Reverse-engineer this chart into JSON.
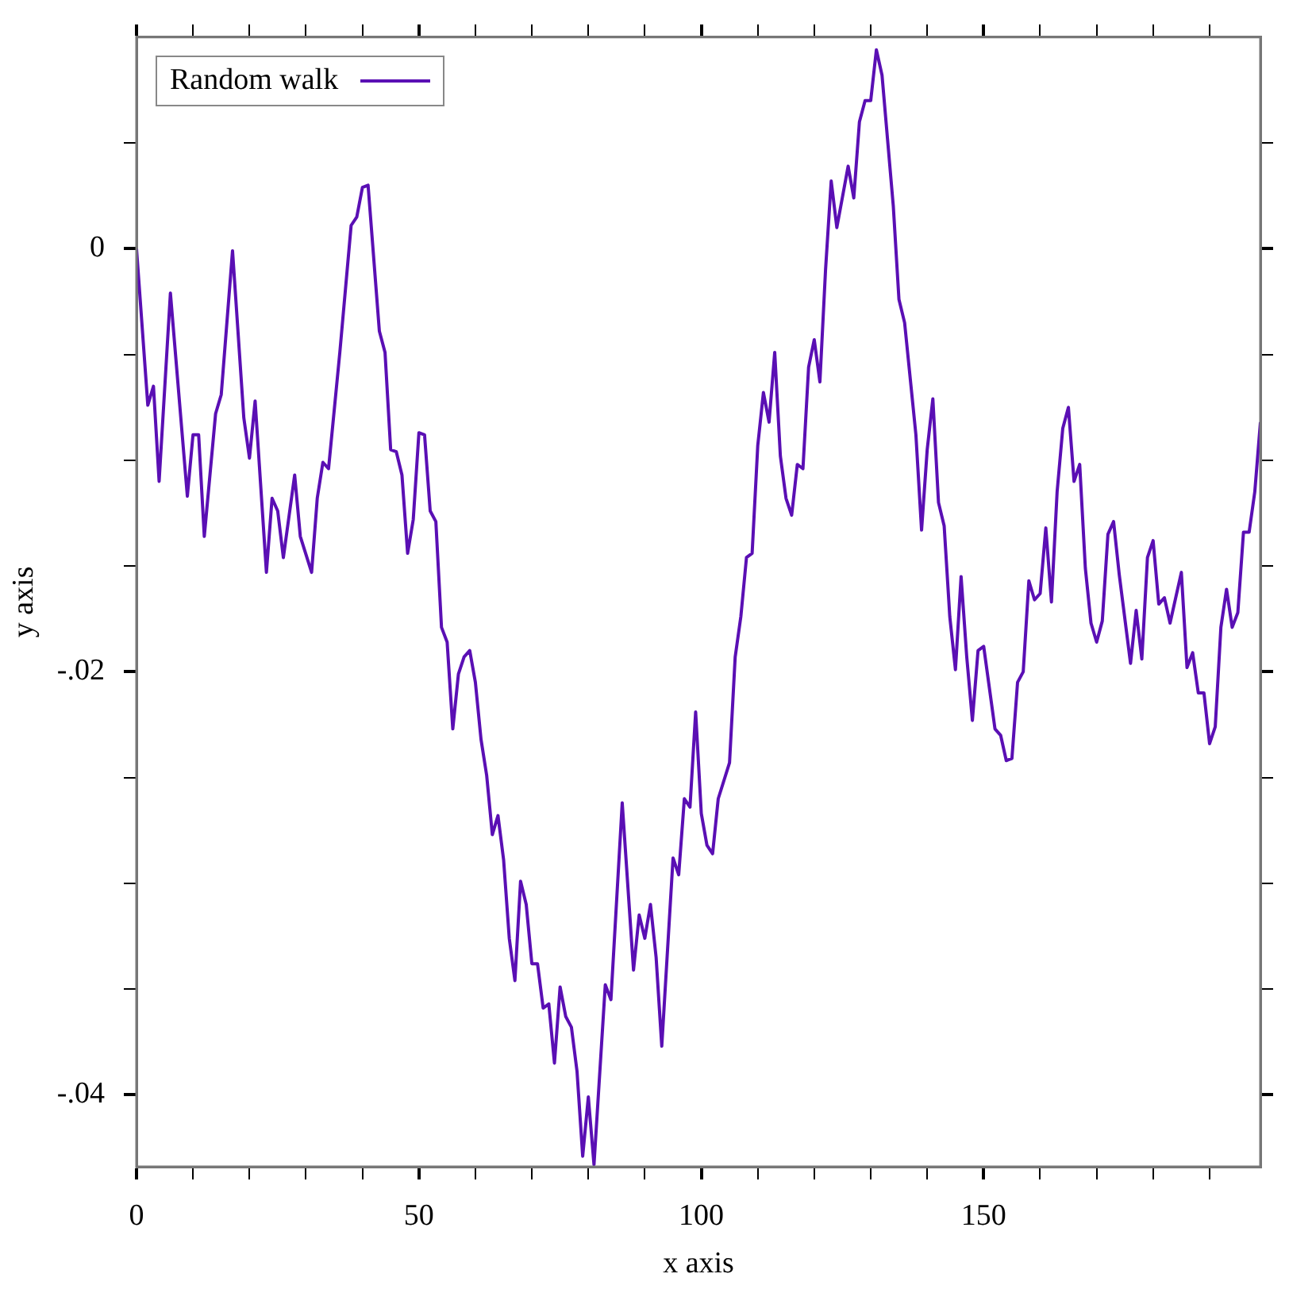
{
  "chart_data": {
    "type": "line",
    "xlabel": "x axis",
    "ylabel": "y axis",
    "legend": "top left",
    "grid": false,
    "marker": "none",
    "line_style": "solid",
    "xlim": [
      0,
      199
    ],
    "ylim": [
      -0.0434,
      0.01
    ],
    "xticks": [
      0,
      {
        "value": 10,
        "label": null
      },
      {
        "value": 20,
        "label": null
      },
      {
        "value": 30,
        "label": null
      },
      {
        "value": 40,
        "label": null
      },
      50,
      {
        "value": 60,
        "label": null
      },
      {
        "value": 70,
        "label": null
      },
      {
        "value": 80,
        "label": null
      },
      {
        "value": 90,
        "label": null
      },
      100,
      {
        "value": 110,
        "label": null
      },
      {
        "value": 120,
        "label": null
      },
      {
        "value": 130,
        "label": null
      },
      {
        "value": 140,
        "label": null
      },
      150,
      {
        "value": 160,
        "label": null
      },
      {
        "value": 170,
        "label": null
      },
      {
        "value": 180,
        "label": null
      },
      {
        "value": 190,
        "label": null
      }
    ],
    "yticks": [
      {
        "value": -0.04,
        "label": "-.04"
      },
      {
        "value": -0.035,
        "label": null
      },
      {
        "value": -0.03,
        "label": null
      },
      {
        "value": -0.025,
        "label": null
      },
      {
        "value": -0.02,
        "label": "-.02"
      },
      {
        "value": -0.015,
        "label": null
      },
      {
        "value": -0.01,
        "label": null
      },
      {
        "value": -0.005,
        "label": null
      },
      0,
      {
        "value": 0.005,
        "label": null
      }
    ],
    "series": [
      {
        "name": "Random walk",
        "color": "#5a0fb4",
        "x": [
          0,
          2,
          3,
          4,
          6,
          9,
          10,
          11,
          12,
          14,
          15,
          17,
          19,
          20,
          21,
          23,
          24,
          25,
          26,
          28,
          29,
          31,
          32,
          33,
          34,
          36,
          38,
          39,
          40,
          41,
          43,
          44,
          45,
          46,
          47,
          48,
          49,
          50,
          51,
          52,
          53,
          54,
          55,
          56,
          57,
          58,
          59,
          60,
          61,
          62,
          63,
          64,
          65,
          66,
          67,
          68,
          69,
          70,
          71,
          72,
          73,
          74,
          75,
          76,
          77,
          78,
          79,
          80,
          81,
          83,
          84,
          86,
          88,
          89,
          90,
          91,
          92,
          93,
          95,
          96,
          97,
          98,
          99,
          100,
          101,
          102,
          103,
          105,
          106,
          107,
          108,
          109,
          110,
          111,
          112,
          113,
          114,
          115,
          116,
          117,
          118,
          119,
          120,
          121,
          122,
          123,
          124,
          126,
          127,
          128,
          129,
          130,
          131,
          132,
          134,
          135,
          136,
          138,
          139,
          140,
          141,
          142,
          143,
          144,
          145,
          146,
          147,
          148,
          149,
          150,
          152,
          153,
          154,
          155,
          156,
          157,
          158,
          159,
          160,
          161,
          162,
          163,
          164,
          165,
          166,
          167,
          168,
          169,
          170,
          171,
          172,
          173,
          174,
          176,
          177,
          178,
          179,
          180,
          181,
          182,
          183,
          185,
          186,
          187,
          188,
          189,
          190,
          191,
          192,
          193,
          194,
          195,
          196,
          197,
          198,
          199
        ],
        "values": [
          0,
          -0.0074,
          -0.0065,
          -0.011,
          -0.0021,
          -0.0117,
          -0.0088,
          -0.0088,
          -0.0136,
          -0.0078,
          -0.0069,
          -0.0001,
          -0.008,
          -0.0099,
          -0.0072,
          -0.0153,
          -0.0118,
          -0.0124,
          -0.0146,
          -0.0107,
          -0.0136,
          -0.0153,
          -0.0118,
          -0.0101,
          -0.0104,
          -0.0049,
          0.0011,
          0.0015,
          0.0029,
          0.003,
          -0.0039,
          -0.0049,
          -0.0095,
          -0.0096,
          -0.0107,
          -0.0144,
          -0.0128,
          -0.0087,
          -0.0088,
          -0.0124,
          -0.0129,
          -0.0179,
          -0.0186,
          -0.0227,
          -0.0201,
          -0.0193,
          -0.019,
          -0.0205,
          -0.0232,
          -0.0249,
          -0.0277,
          -0.0268,
          -0.0289,
          -0.0326,
          -0.0346,
          -0.0299,
          -0.031,
          -0.0338,
          -0.0338,
          -0.0359,
          -0.0357,
          -0.0385,
          -0.0349,
          -0.0363,
          -0.0368,
          -0.0389,
          -0.0429,
          -0.0401,
          -0.0433,
          -0.0348,
          -0.0355,
          -0.0262,
          -0.0341,
          -0.0315,
          -0.0326,
          -0.031,
          -0.0335,
          -0.0377,
          -0.0288,
          -0.0296,
          -0.026,
          -0.0264,
          -0.0219,
          -0.0267,
          -0.0282,
          -0.0286,
          -0.026,
          -0.0243,
          -0.0193,
          -0.0174,
          -0.0146,
          -0.0144,
          -0.0093,
          -0.0068,
          -0.0082,
          -0.0049,
          -0.0098,
          -0.0118,
          -0.0126,
          -0.0102,
          -0.0104,
          -0.0056,
          -0.0043,
          -0.0063,
          -0.001,
          0.0032,
          0.001,
          0.0039,
          0.0024,
          0.006,
          0.007,
          0.007,
          0.0094,
          0.0082,
          0.002,
          -0.0024,
          -0.0035,
          -0.0088,
          -0.0133,
          -0.0095,
          -0.0071,
          -0.012,
          -0.0131,
          -0.0174,
          -0.0199,
          -0.0155,
          -0.0193,
          -0.0223,
          -0.019,
          -0.0188,
          -0.0227,
          -0.023,
          -0.0242,
          -0.0241,
          -0.0205,
          -0.02,
          -0.0157,
          -0.0166,
          -0.0163,
          -0.0132,
          -0.0167,
          -0.0115,
          -0.0085,
          -0.0075,
          -0.011,
          -0.0102,
          -0.0151,
          -0.0177,
          -0.0186,
          -0.0176,
          -0.0135,
          -0.0129,
          -0.0154,
          -0.0196,
          -0.0171,
          -0.0194,
          -0.0146,
          -0.0138,
          -0.0168,
          -0.0165,
          -0.0177,
          -0.0153,
          -0.0198,
          -0.0191,
          -0.021,
          -0.021,
          -0.0234,
          -0.0226,
          -0.0179,
          -0.0161,
          -0.0179,
          -0.0172,
          -0.0134,
          -0.0134,
          -0.0115,
          -0.0082
        ]
      }
    ]
  }
}
